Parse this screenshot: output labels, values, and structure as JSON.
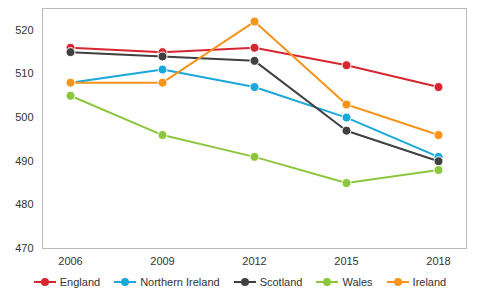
{
  "chart_data": {
    "type": "line",
    "categories": [
      "2006",
      "2009",
      "2012",
      "2015",
      "2018"
    ],
    "series": [
      {
        "name": "England",
        "color": "#d7262f",
        "values": [
          516,
          515,
          516,
          512,
          507
        ]
      },
      {
        "name": "Northern Ireland",
        "color": "#1aa7d9",
        "values": [
          508,
          511,
          507,
          500,
          491
        ]
      },
      {
        "name": "Scotland",
        "color": "#404040",
        "values": [
          515,
          514,
          513,
          497,
          490
        ]
      },
      {
        "name": "Wales",
        "color": "#8cc63f",
        "values": [
          505,
          496,
          491,
          485,
          488
        ]
      },
      {
        "name": "Ireland",
        "color": "#f7941d",
        "values": [
          508,
          508,
          522,
          503,
          496
        ]
      }
    ],
    "ylim": [
      470,
      525
    ],
    "yticks": [
      470,
      480,
      490,
      500,
      510,
      520
    ],
    "grid": false,
    "marker": "circle",
    "legend": "bottom"
  }
}
